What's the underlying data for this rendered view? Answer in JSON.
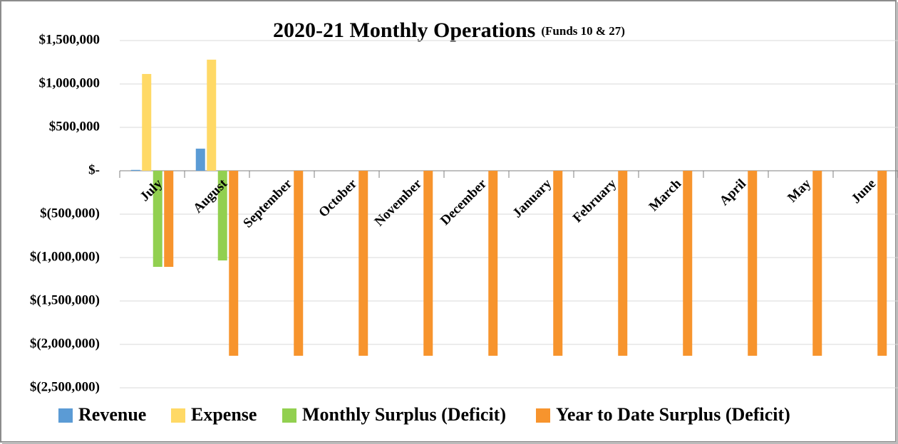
{
  "chart_data": {
    "type": "bar",
    "title": "2020-21 Monthly Operations",
    "subtitle": "(Funds 10 & 27)",
    "categories": [
      "July",
      "August",
      "September",
      "October",
      "November",
      "December",
      "January",
      "February",
      "March",
      "April",
      "May",
      "June"
    ],
    "series": [
      {
        "name": "Revenue",
        "color": "#5b9bd5",
        "values": [
          10000,
          255000,
          null,
          null,
          null,
          null,
          null,
          null,
          null,
          null,
          null,
          null
        ]
      },
      {
        "name": "Expense",
        "color": "#ffd966",
        "values": [
          1115000,
          1280000,
          null,
          null,
          null,
          null,
          null,
          null,
          null,
          null,
          null,
          null
        ]
      },
      {
        "name": "Monthly Surplus (Deficit)",
        "color": "#92d050",
        "values": [
          -1107000,
          -1033000,
          null,
          null,
          null,
          null,
          null,
          null,
          null,
          null,
          null,
          null
        ]
      },
      {
        "name": "Year to Date Surplus (Deficit)",
        "color": "#f7942d",
        "values": [
          -1107000,
          -2131000,
          -2131000,
          -2131000,
          -2131000,
          -2131000,
          -2131000,
          -2131000,
          -2131000,
          -2131000,
          -2131000,
          -2131000
        ]
      }
    ],
    "ylim": [
      -2500000,
      1500000
    ],
    "yticks": [
      {
        "value": 1500000,
        "label": "$1,500,000"
      },
      {
        "value": 1000000,
        "label": "$1,000,000"
      },
      {
        "value": 500000,
        "label": "$500,000"
      },
      {
        "value": 0,
        "label": "$-"
      },
      {
        "value": -500000,
        "label": "$(500,000)"
      },
      {
        "value": -1000000,
        "label": "$(1,000,000)"
      },
      {
        "value": -1500000,
        "label": "$(1,500,000)"
      },
      {
        "value": -2000000,
        "label": "$(2,000,000)"
      },
      {
        "value": -2500000,
        "label": "$(2,500,000)"
      }
    ],
    "grid": true,
    "legend": "bottom"
  }
}
